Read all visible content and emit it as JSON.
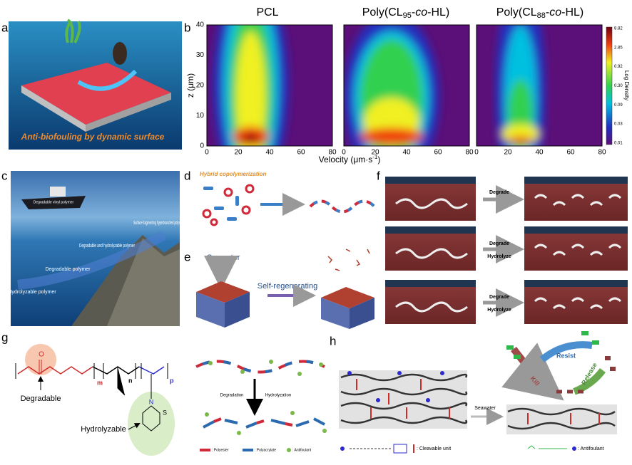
{
  "panel_labels": [
    "a",
    "b",
    "c",
    "d",
    "e",
    "f",
    "g",
    "h"
  ],
  "panel_a": {
    "caption": "Anti-biofouling by dynamic surface"
  },
  "panel_b": {
    "titles": [
      {
        "text": "PCL"
      },
      {
        "prefix": "Poly(CL",
        "sub": "95",
        "mid": "-",
        "italic": "co",
        "suffix": "-HL)"
      },
      {
        "prefix": "Poly(CL",
        "sub": "88",
        "mid": "-",
        "italic": "co",
        "suffix": "-HL)"
      }
    ],
    "y_label": "z (μm)",
    "x_label": {
      "text": "Velocity (μm·s",
      "sup": "-1",
      "end": ")"
    },
    "xticks": [
      "0",
      "20",
      "40",
      "60",
      "80"
    ],
    "yticks": [
      "0",
      "10",
      "20",
      "30",
      "40"
    ],
    "colorbar": {
      "label": "Log Density",
      "ticks": [
        "8.82",
        "2.85",
        "0.92",
        "0.30",
        "0.09",
        "0.03",
        "0.01"
      ]
    }
  },
  "panel_c": {
    "ship": "Degradable vinyl polymer",
    "hyperbranched": "Surface-fragmenting hyperbranched polymer",
    "deg_hyd": "Degradable and hydrolyzable polymer",
    "degradable": "Degradable polymer",
    "hydrolyzable": "Hydrolyzable polymer"
  },
  "panel_d": {
    "label": "Hybrid copolymerization"
  },
  "panel_e": {
    "seawater": "Seawater",
    "regen": "Self-regenerating"
  },
  "panel_f": {
    "rows": [
      [
        "Degrade"
      ],
      [
        "Degrade",
        "Hydrolyze"
      ],
      [
        "Degrade",
        "Hydrolyze"
      ]
    ]
  },
  "panel_g": {
    "degradable": "Degradable",
    "hydrolyzable": "Hydrolyzable",
    "m": "m",
    "n": "n",
    "p": "p",
    "o1": "O",
    "s": "S",
    "n_atom": "N",
    "degradation": "Degradation",
    "hydrolyzation": "Hydrolyzation",
    "legend": [
      ": Polyester",
      ": Polyacrylate",
      ": Antifoulant"
    ]
  },
  "panel_h": {
    "resist": "Resist",
    "kill": "Kill",
    "release": "Release",
    "seawater": "Seawater",
    "cleavable": ": Cleavable unit",
    "antifoulant": ": Antifoulant"
  }
}
